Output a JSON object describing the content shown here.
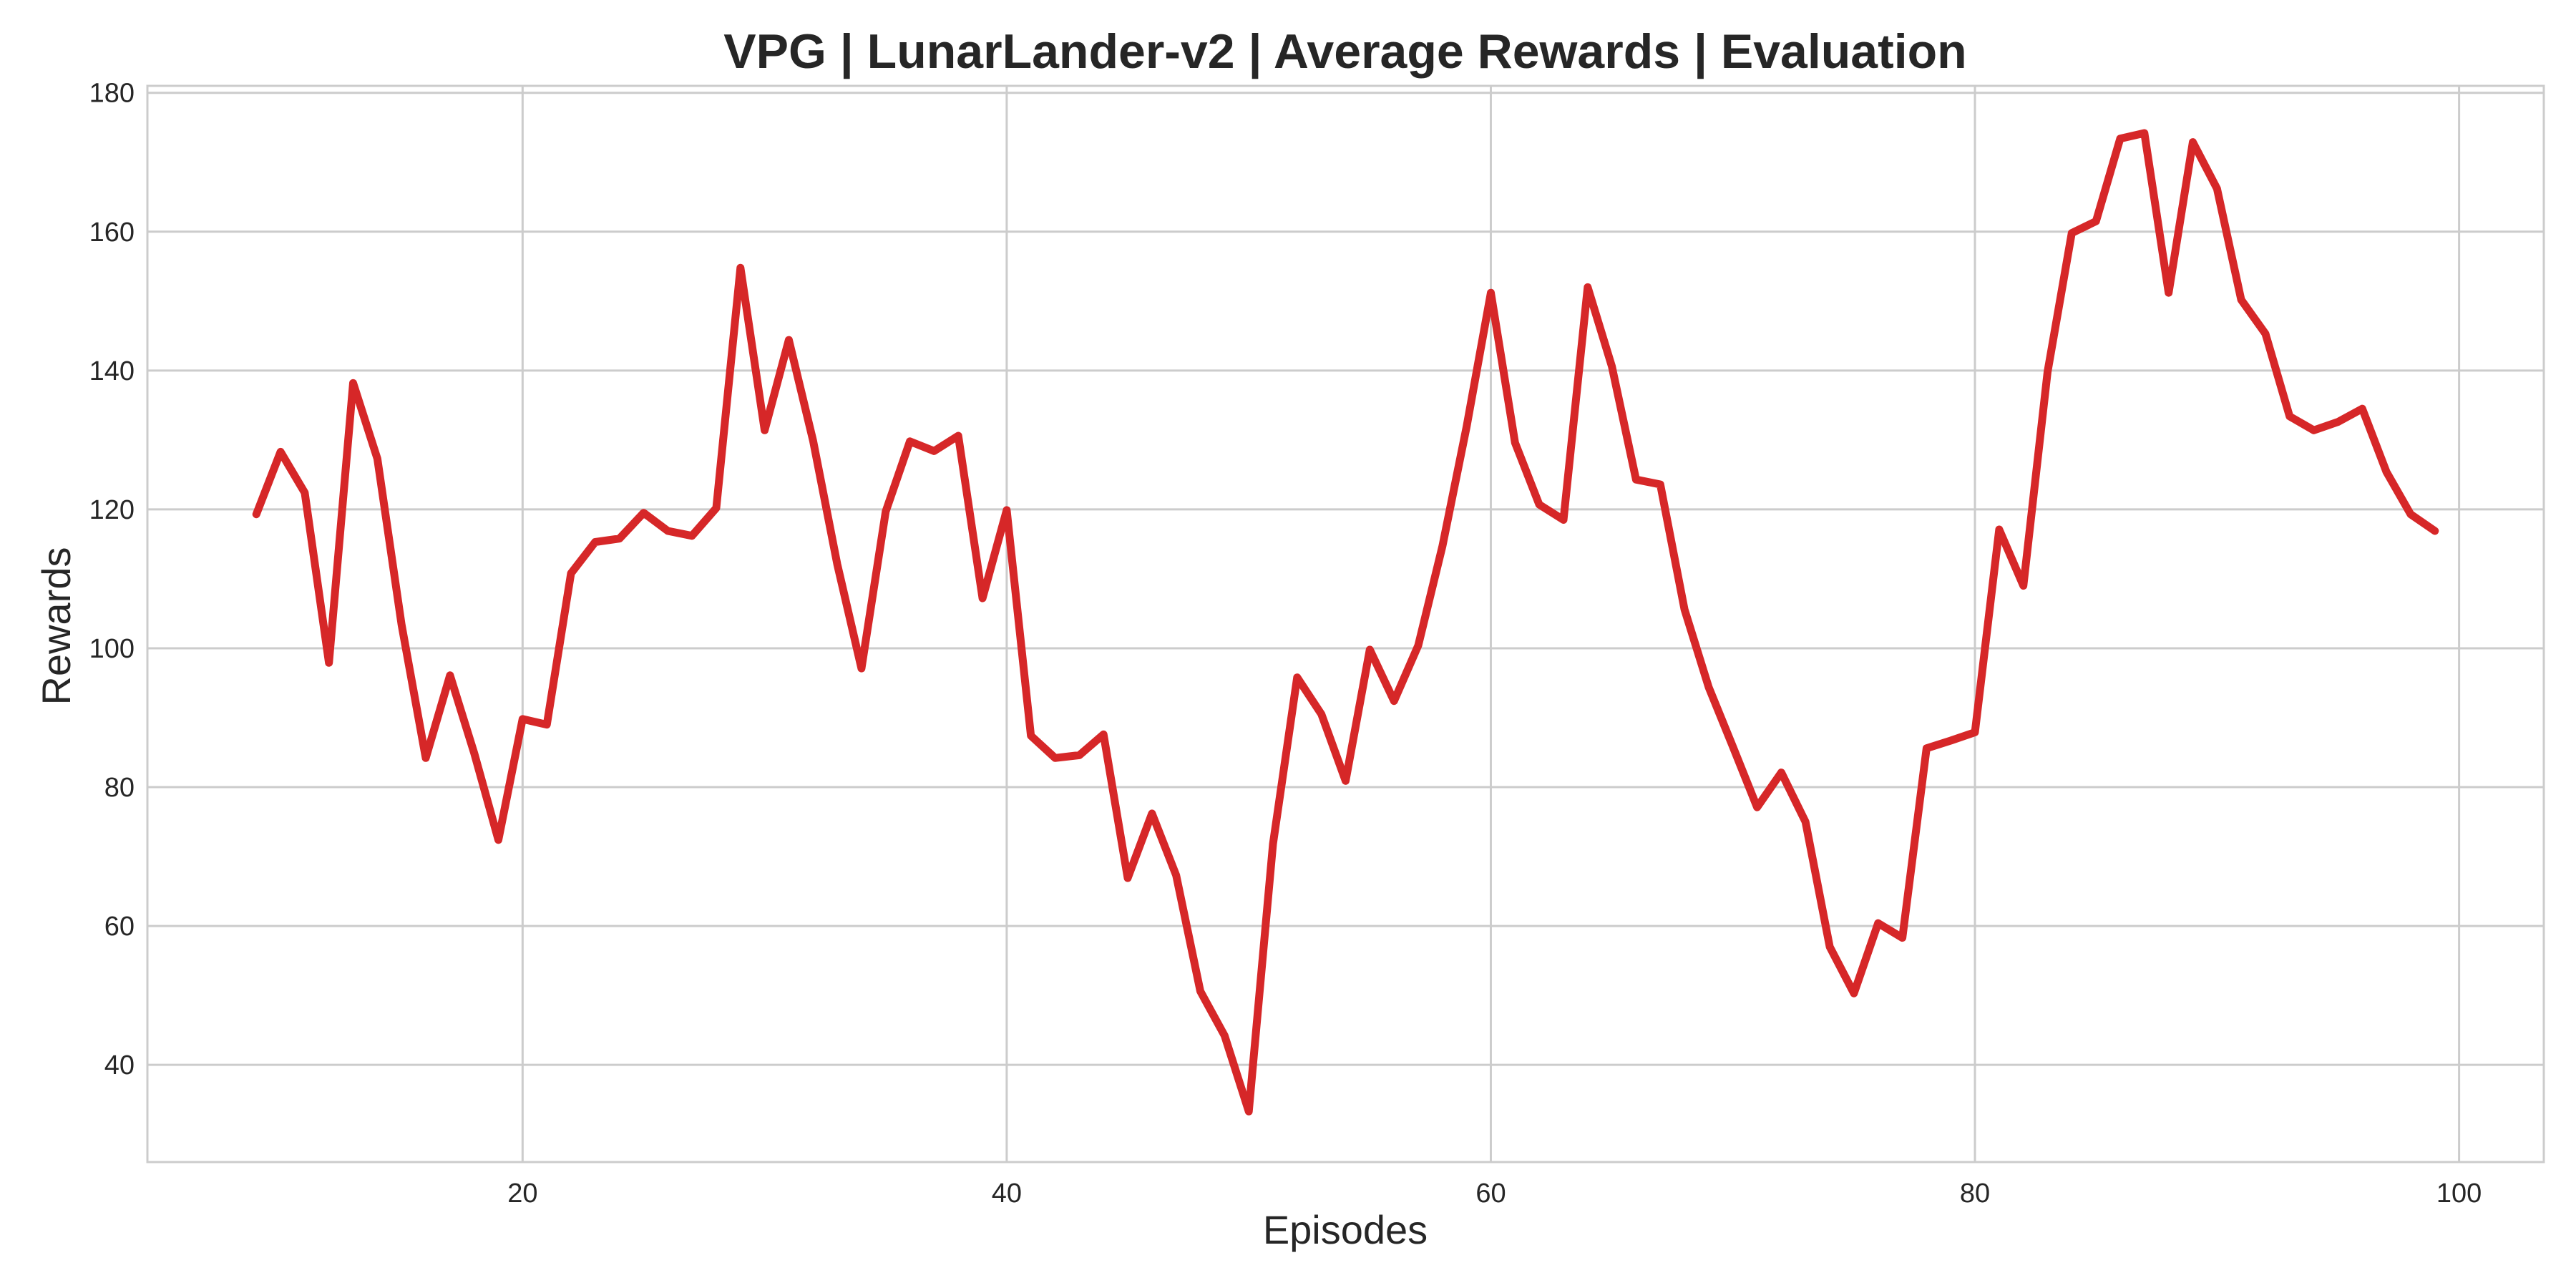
{
  "chart_data": {
    "type": "line",
    "title": "VPG | LunarLander-v2 | Average Rewards | Evaluation",
    "xlabel": "Episodes",
    "ylabel": "Rewards",
    "xlim": [
      4.5,
      103.5
    ],
    "ylim": [
      26,
      181
    ],
    "xticks": [
      20,
      40,
      60,
      80,
      100
    ],
    "yticks": [
      40,
      60,
      80,
      100,
      120,
      140,
      160,
      180
    ],
    "grid": true,
    "legend": false,
    "series": [
      {
        "color": "#d62728",
        "x": [
          9,
          10,
          11,
          12,
          13,
          14,
          15,
          16,
          17,
          18,
          19,
          20,
          21,
          22,
          23,
          24,
          25,
          26,
          27,
          28,
          29,
          30,
          31,
          32,
          33,
          34,
          35,
          36,
          37,
          38,
          39,
          40,
          41,
          42,
          43,
          44,
          45,
          46,
          47,
          48,
          49,
          50,
          51,
          52,
          53,
          54,
          55,
          56,
          57,
          58,
          59,
          60,
          61,
          62,
          63,
          64,
          65,
          66,
          67,
          68,
          69,
          70,
          71,
          72,
          73,
          74,
          75,
          76,
          77,
          78,
          79,
          80,
          81,
          82,
          83,
          84,
          85,
          86,
          87,
          88,
          89,
          90,
          91,
          92,
          93,
          94,
          95,
          96,
          97,
          98,
          99
        ],
        "y": [
          119.3,
          128.3,
          122.4,
          97.9,
          138.2,
          127.3,
          103.4,
          84.2,
          96.1,
          84.9,
          72.4,
          89.8,
          89.0,
          110.8,
          115.3,
          115.8,
          119.5,
          116.9,
          116.2,
          120.2,
          154.8,
          131.4,
          144.4,
          129.9,
          112.1,
          97.1,
          119.7,
          129.8,
          128.4,
          130.6,
          107.2,
          119.9,
          87.4,
          84.2,
          84.6,
          87.6,
          66.9,
          76.2,
          67.3,
          50.6,
          44.2,
          33.3,
          71.8,
          95.8,
          90.5,
          80.9,
          99.8,
          92.4,
          100.4,
          114.7,
          131.9,
          151.2,
          129.6,
          120.7,
          118.5,
          152.0,
          140.6,
          124.3,
          123.6,
          105.6,
          94.4,
          85.8,
          77.1,
          82.1,
          75.0,
          57.0,
          50.3,
          60.4,
          58.3,
          85.6,
          86.7,
          87.9,
          117.1,
          109.0,
          139.8,
          159.8,
          161.5,
          173.4,
          174.2,
          151.2,
          172.9,
          166.2,
          150.2,
          145.3,
          133.4,
          131.4,
          132.6,
          134.5,
          125.4,
          119.3,
          116.9
        ]
      }
    ]
  }
}
